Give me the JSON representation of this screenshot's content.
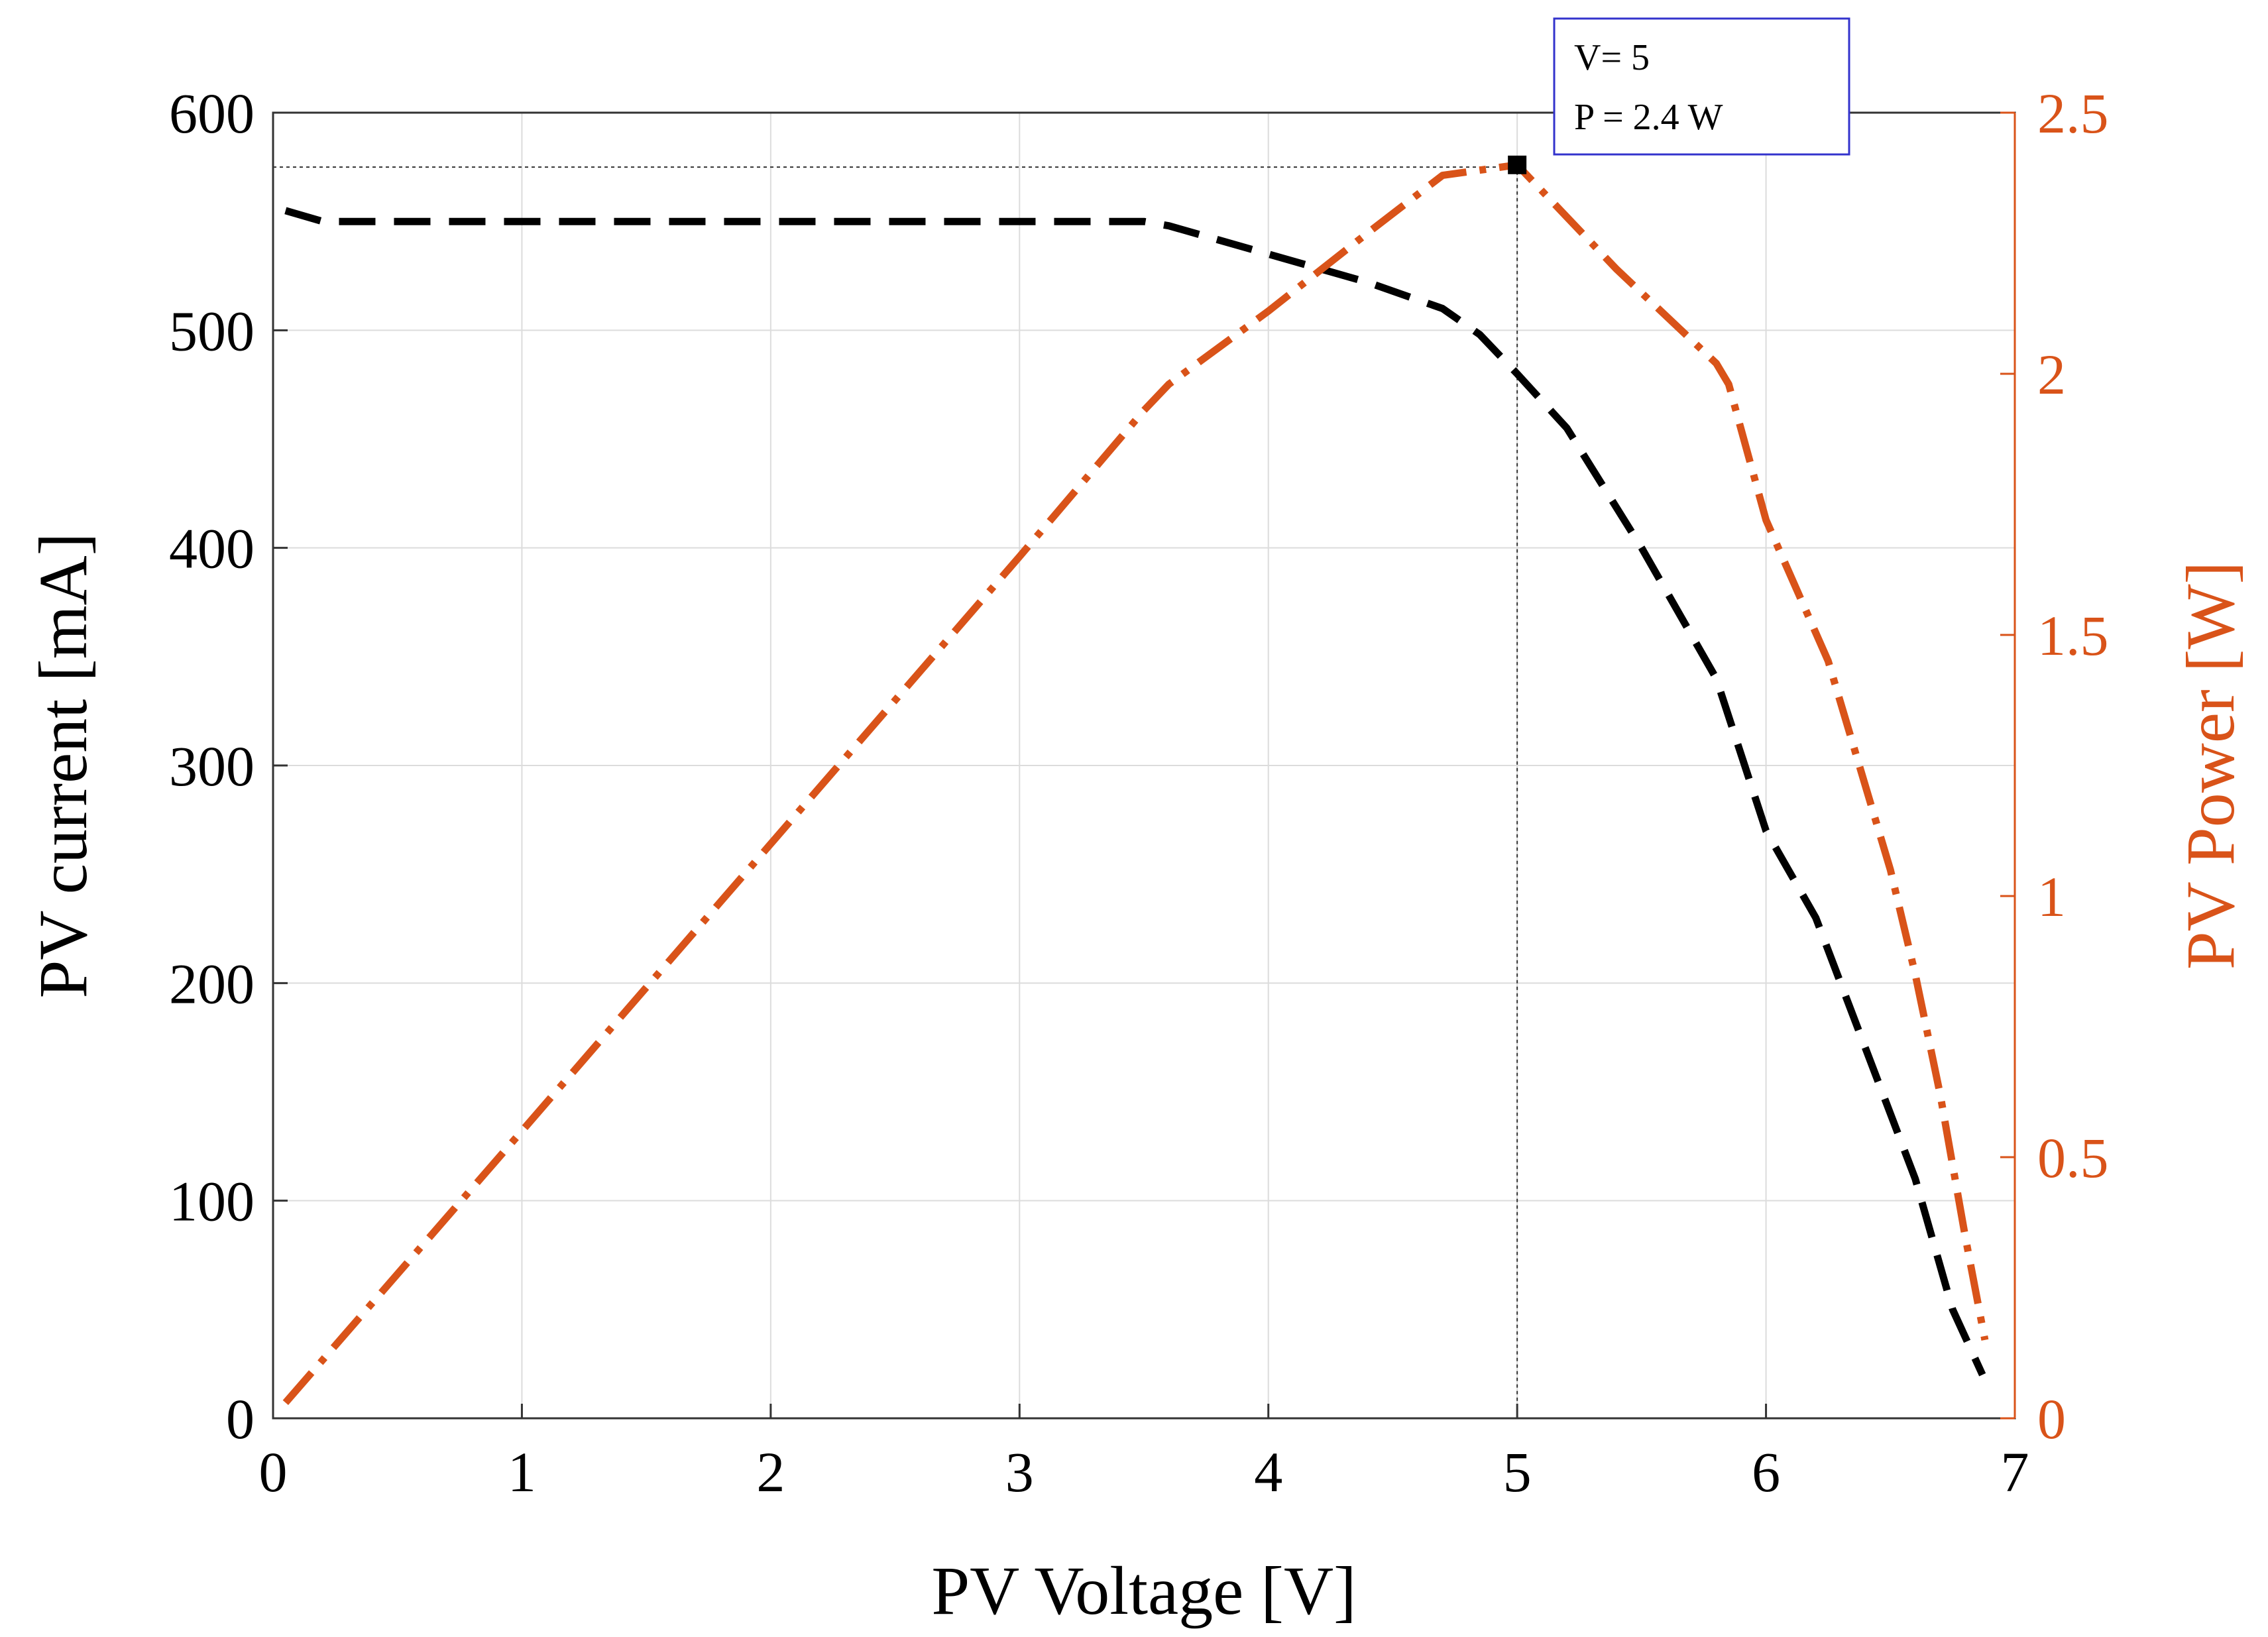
{
  "chart_data": {
    "type": "line",
    "title": "",
    "xlabel": "PV Voltage [V]",
    "ylabel_left": "PV current [mA]",
    "ylabel_right": "PV Power [W]",
    "xlim": [
      0,
      7
    ],
    "ylim_left": [
      0,
      600
    ],
    "ylim_right": [
      0,
      2.5
    ],
    "x_ticks": [
      0,
      1,
      2,
      3,
      4,
      5,
      6,
      7
    ],
    "x_tick_labels": [
      "0",
      "1",
      "2",
      "3",
      "4",
      "5",
      "6",
      "7"
    ],
    "y_left_ticks": [
      0,
      100,
      200,
      300,
      400,
      500,
      600
    ],
    "y_left_tick_labels": [
      "0",
      "100",
      "200",
      "300",
      "400",
      "500",
      "600"
    ],
    "y_right_ticks": [
      0,
      0.5,
      1,
      1.5,
      2,
      2.5
    ],
    "y_right_tick_labels": [
      "0",
      "0.5",
      "1",
      "1.5",
      "2",
      "2.5"
    ],
    "grid": true,
    "colors": {
      "current": "#000000",
      "power": "#d95319",
      "right_axis": "#d95319",
      "grid": "#dcdcdc",
      "annotation_border": "#3333cc"
    },
    "series": [
      {
        "name": "PV current",
        "axis": "left",
        "style": "dashed",
        "color": "#000000",
        "x": [
          0.05,
          0.2,
          1.0,
          2.0,
          3.0,
          3.5,
          3.6,
          4.0,
          4.4,
          4.7,
          4.85,
          5.0,
          5.2,
          5.5,
          5.8,
          6.0,
          6.2,
          6.4,
          6.6,
          6.75,
          6.87
        ],
        "y": [
          555,
          550,
          550,
          550,
          550,
          550,
          548,
          535,
          522,
          510,
          498,
          480,
          455,
          400,
          340,
          270,
          230,
          170,
          110,
          50,
          20
        ]
      },
      {
        "name": "PV Power",
        "axis": "right",
        "style": "dashdot",
        "color": "#d95319",
        "x": [
          0.05,
          1.0,
          2.0,
          3.0,
          3.5,
          3.6,
          4.0,
          4.4,
          4.7,
          4.85,
          5.0,
          5.4,
          5.8,
          5.85,
          6.0,
          6.25,
          6.5,
          6.6,
          6.7,
          6.8,
          6.88
        ],
        "y": [
          0.03,
          0.55,
          1.1,
          1.65,
          1.93,
          1.98,
          2.12,
          2.27,
          2.38,
          2.39,
          2.4,
          2.2,
          2.02,
          1.98,
          1.72,
          1.45,
          1.05,
          0.85,
          0.62,
          0.35,
          0.15
        ]
      }
    ],
    "annotation": {
      "x": 5,
      "y_power": 2.4,
      "y_current": 575,
      "line1": "V= 5",
      "line2": "P = 2.4 W"
    }
  }
}
